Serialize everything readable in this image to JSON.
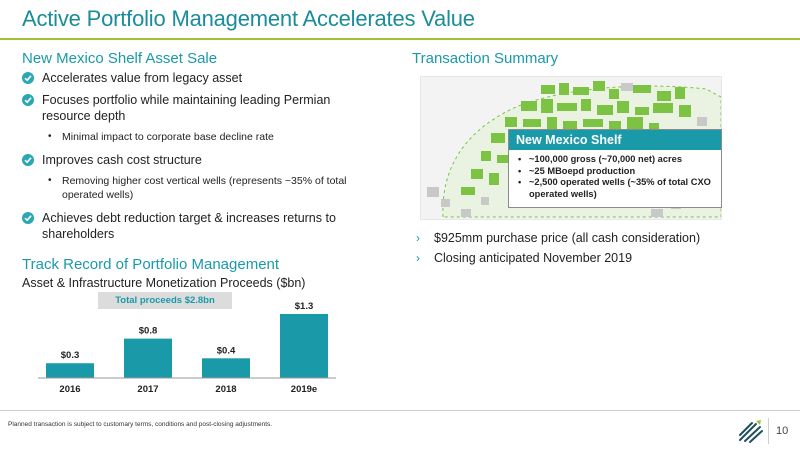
{
  "title": "Active Portfolio Management Accelerates Value",
  "left": {
    "heading": "New Mexico Shelf Asset Sale",
    "bullets": [
      {
        "text": "Accelerates value from legacy asset"
      },
      {
        "text": "Focuses portfolio while maintaining leading Permian resource depth",
        "sub": "Minimal impact to corporate base decline rate"
      },
      {
        "text": "Improves cash cost structure",
        "sub": "Removing higher cost vertical wells (represents ~35% of total operated wells)"
      },
      {
        "text": "Achieves debt reduction target & increases returns to shareholders"
      }
    ]
  },
  "track": {
    "heading": "Track Record of Portfolio Management",
    "subheading": "Asset & Infrastructure Monetization Proceeds ($bn)",
    "total_label": "Total proceeds $2.8bn"
  },
  "chart_data": {
    "type": "bar",
    "categories": [
      "2016",
      "2017",
      "2018",
      "2019e"
    ],
    "values": [
      0.3,
      0.8,
      0.4,
      1.3
    ],
    "data_labels": [
      "$0.3",
      "$0.8",
      "$0.4",
      "$1.3"
    ],
    "ylim": [
      0,
      1.3
    ],
    "grid": false,
    "color": "#1a9aa8"
  },
  "right": {
    "heading": "Transaction Summary",
    "callout_title": "New Mexico Shelf",
    "callout_items": [
      "~100,000 gross (~70,000 net) acres",
      "~25 MBoepd production",
      "~2,500 operated wells (~35% of total CXO operated wells)"
    ],
    "summary_items": [
      "$925mm purchase price (all cash consideration)",
      "Closing anticipated November 2019"
    ]
  },
  "footnote": "Planned transaction is subject to customary terms, conditions and post-closing adjustments.",
  "page_number": "10",
  "colors": {
    "accent": "#1a9aa8",
    "rule": "#9cc23c",
    "map_green": "#7cc243",
    "map_gray": "#c8c8c8"
  }
}
